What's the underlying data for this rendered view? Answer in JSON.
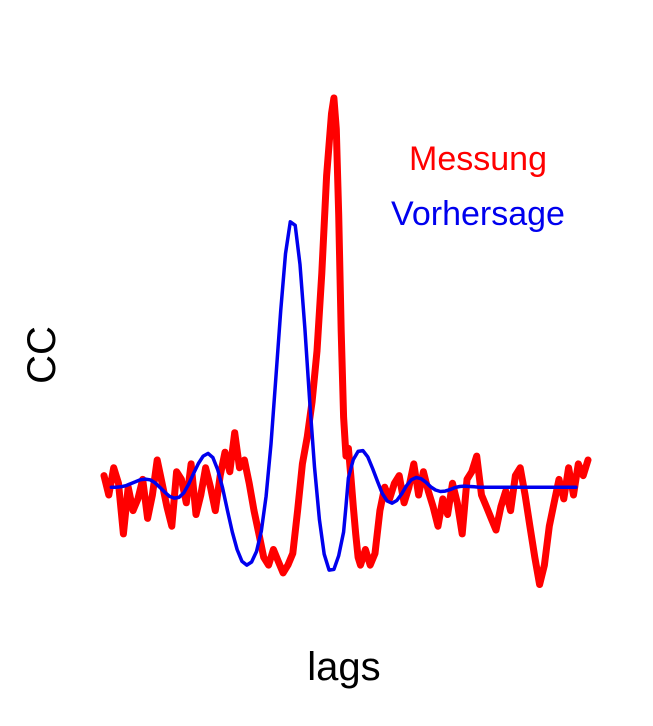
{
  "chart_data": {
    "type": "line",
    "title": "",
    "xlabel": "lags",
    "ylabel": "CC",
    "grid": false,
    "axes_visible": false,
    "legend_placement": "top-right",
    "xlim": [
      -100,
      100
    ],
    "ylim": [
      -0.3,
      1.0
    ],
    "series": [
      {
        "name": "Messung",
        "color": "#ff0000",
        "x": [
          -100,
          -98,
          -96,
          -94,
          -92,
          -90,
          -88,
          -86,
          -84,
          -82,
          -80,
          -78,
          -76,
          -74,
          -72,
          -70,
          -68,
          -66,
          -64,
          -62,
          -60,
          -58,
          -56,
          -54,
          -52,
          -50,
          -48,
          -46,
          -44,
          -42,
          -40,
          -38,
          -36,
          -34,
          -32,
          -30,
          -28,
          -26,
          -24,
          -22,
          -20,
          -18,
          -16,
          -14,
          -12,
          -10,
          -8,
          -6,
          -5,
          -4,
          -3,
          -2,
          -1,
          0,
          1,
          2,
          3,
          4,
          5,
          6,
          8,
          10,
          12,
          14,
          16,
          18,
          20,
          22,
          24,
          26,
          28,
          30,
          32,
          34,
          36,
          38,
          40,
          42,
          44,
          46,
          48,
          50,
          52,
          54,
          56,
          58,
          60,
          62,
          64,
          66,
          68,
          70,
          72,
          74,
          76,
          78,
          80,
          82,
          84,
          86,
          88,
          90,
          92,
          94,
          96,
          98,
          100
        ],
        "y": [
          0.03,
          -0.02,
          0.05,
          0.01,
          -0.12,
          0.0,
          -0.06,
          -0.03,
          0.02,
          -0.08,
          -0.02,
          0.07,
          0.01,
          -0.05,
          -0.1,
          0.04,
          0.02,
          -0.04,
          0.06,
          -0.07,
          -0.02,
          0.05,
          0.0,
          -0.06,
          0.03,
          0.09,
          0.04,
          0.14,
          0.05,
          0.07,
          0.01,
          -0.06,
          -0.12,
          -0.18,
          -0.2,
          -0.16,
          -0.19,
          -0.22,
          -0.2,
          -0.17,
          -0.06,
          0.06,
          0.13,
          0.22,
          0.35,
          0.55,
          0.8,
          0.96,
          1.0,
          0.92,
          0.7,
          0.4,
          0.18,
          0.08,
          0.1,
          0.03,
          -0.05,
          -0.12,
          -0.18,
          -0.2,
          -0.16,
          -0.2,
          -0.17,
          -0.06,
          0.0,
          -0.03,
          0.01,
          0.03,
          -0.04,
          0.0,
          0.06,
          -0.02,
          0.04,
          -0.01,
          -0.05,
          -0.1,
          -0.03,
          -0.07,
          0.01,
          -0.04,
          -0.12,
          0.02,
          0.04,
          0.08,
          -0.02,
          -0.05,
          -0.08,
          -0.11,
          -0.05,
          -0.01,
          -0.06,
          0.03,
          0.05,
          -0.02,
          -0.1,
          -0.18,
          -0.25,
          -0.2,
          -0.1,
          -0.04,
          0.02,
          -0.03,
          0.05,
          -0.02,
          0.06,
          0.03,
          0.07
        ]
      },
      {
        "name": "Vorhersage",
        "color": "#0000ee",
        "x": [
          -97,
          -95,
          -93,
          -91,
          -89,
          -87,
          -85,
          -83,
          -81,
          -79,
          -77,
          -75,
          -73,
          -71,
          -69,
          -67,
          -65,
          -63,
          -61,
          -59,
          -57,
          -55,
          -53,
          -51,
          -49,
          -47,
          -45,
          -43,
          -41,
          -39,
          -37,
          -35,
          -33,
          -31,
          -29,
          -27,
          -25,
          -23,
          -21,
          -19,
          -17,
          -15,
          -13,
          -11,
          -9,
          -7,
          -5,
          -3,
          -1,
          0,
          1,
          3,
          5,
          7,
          9,
          11,
          13,
          15,
          17,
          19,
          21,
          23,
          25,
          27,
          29,
          31,
          33,
          35,
          37,
          39,
          41,
          43,
          45,
          47,
          49,
          51,
          53,
          55,
          57,
          59,
          61,
          63,
          65,
          67,
          69,
          71,
          73,
          75,
          77,
          79,
          81,
          83,
          85,
          87,
          89,
          91,
          93,
          95
        ],
        "y": [
          0.0,
          0.0,
          0.001,
          0.004,
          0.009,
          0.014,
          0.019,
          0.021,
          0.019,
          0.012,
          0.0,
          -0.012,
          -0.023,
          -0.028,
          -0.026,
          -0.014,
          0.008,
          0.035,
          0.061,
          0.08,
          0.087,
          0.076,
          0.045,
          -0.002,
          -0.059,
          -0.115,
          -0.16,
          -0.19,
          -0.2,
          -0.192,
          -0.165,
          -0.113,
          -0.023,
          0.111,
          0.279,
          0.453,
          0.6,
          0.682,
          0.673,
          0.572,
          0.407,
          0.221,
          0.052,
          -0.083,
          -0.172,
          -0.213,
          -0.211,
          -0.176,
          -0.115,
          -0.048,
          0.024,
          0.071,
          0.092,
          0.094,
          0.078,
          0.048,
          0.015,
          -0.016,
          -0.035,
          -0.041,
          -0.034,
          -0.017,
          0.004,
          0.019,
          0.025,
          0.022,
          0.013,
          0.001,
          -0.007,
          -0.011,
          -0.01,
          -0.006,
          -0.001,
          0.002,
          0.003,
          0.002,
          0.001,
          0.0,
          0.0,
          0.0,
          0.0,
          0.0,
          0.0,
          0.0,
          0.0,
          0.0,
          0.0,
          0.0,
          0.0,
          0.0,
          0.0,
          0.0,
          0.0,
          0.0,
          0.0,
          0.0,
          0.0,
          0.0
        ],
        "note": ""
      }
    ]
  }
}
